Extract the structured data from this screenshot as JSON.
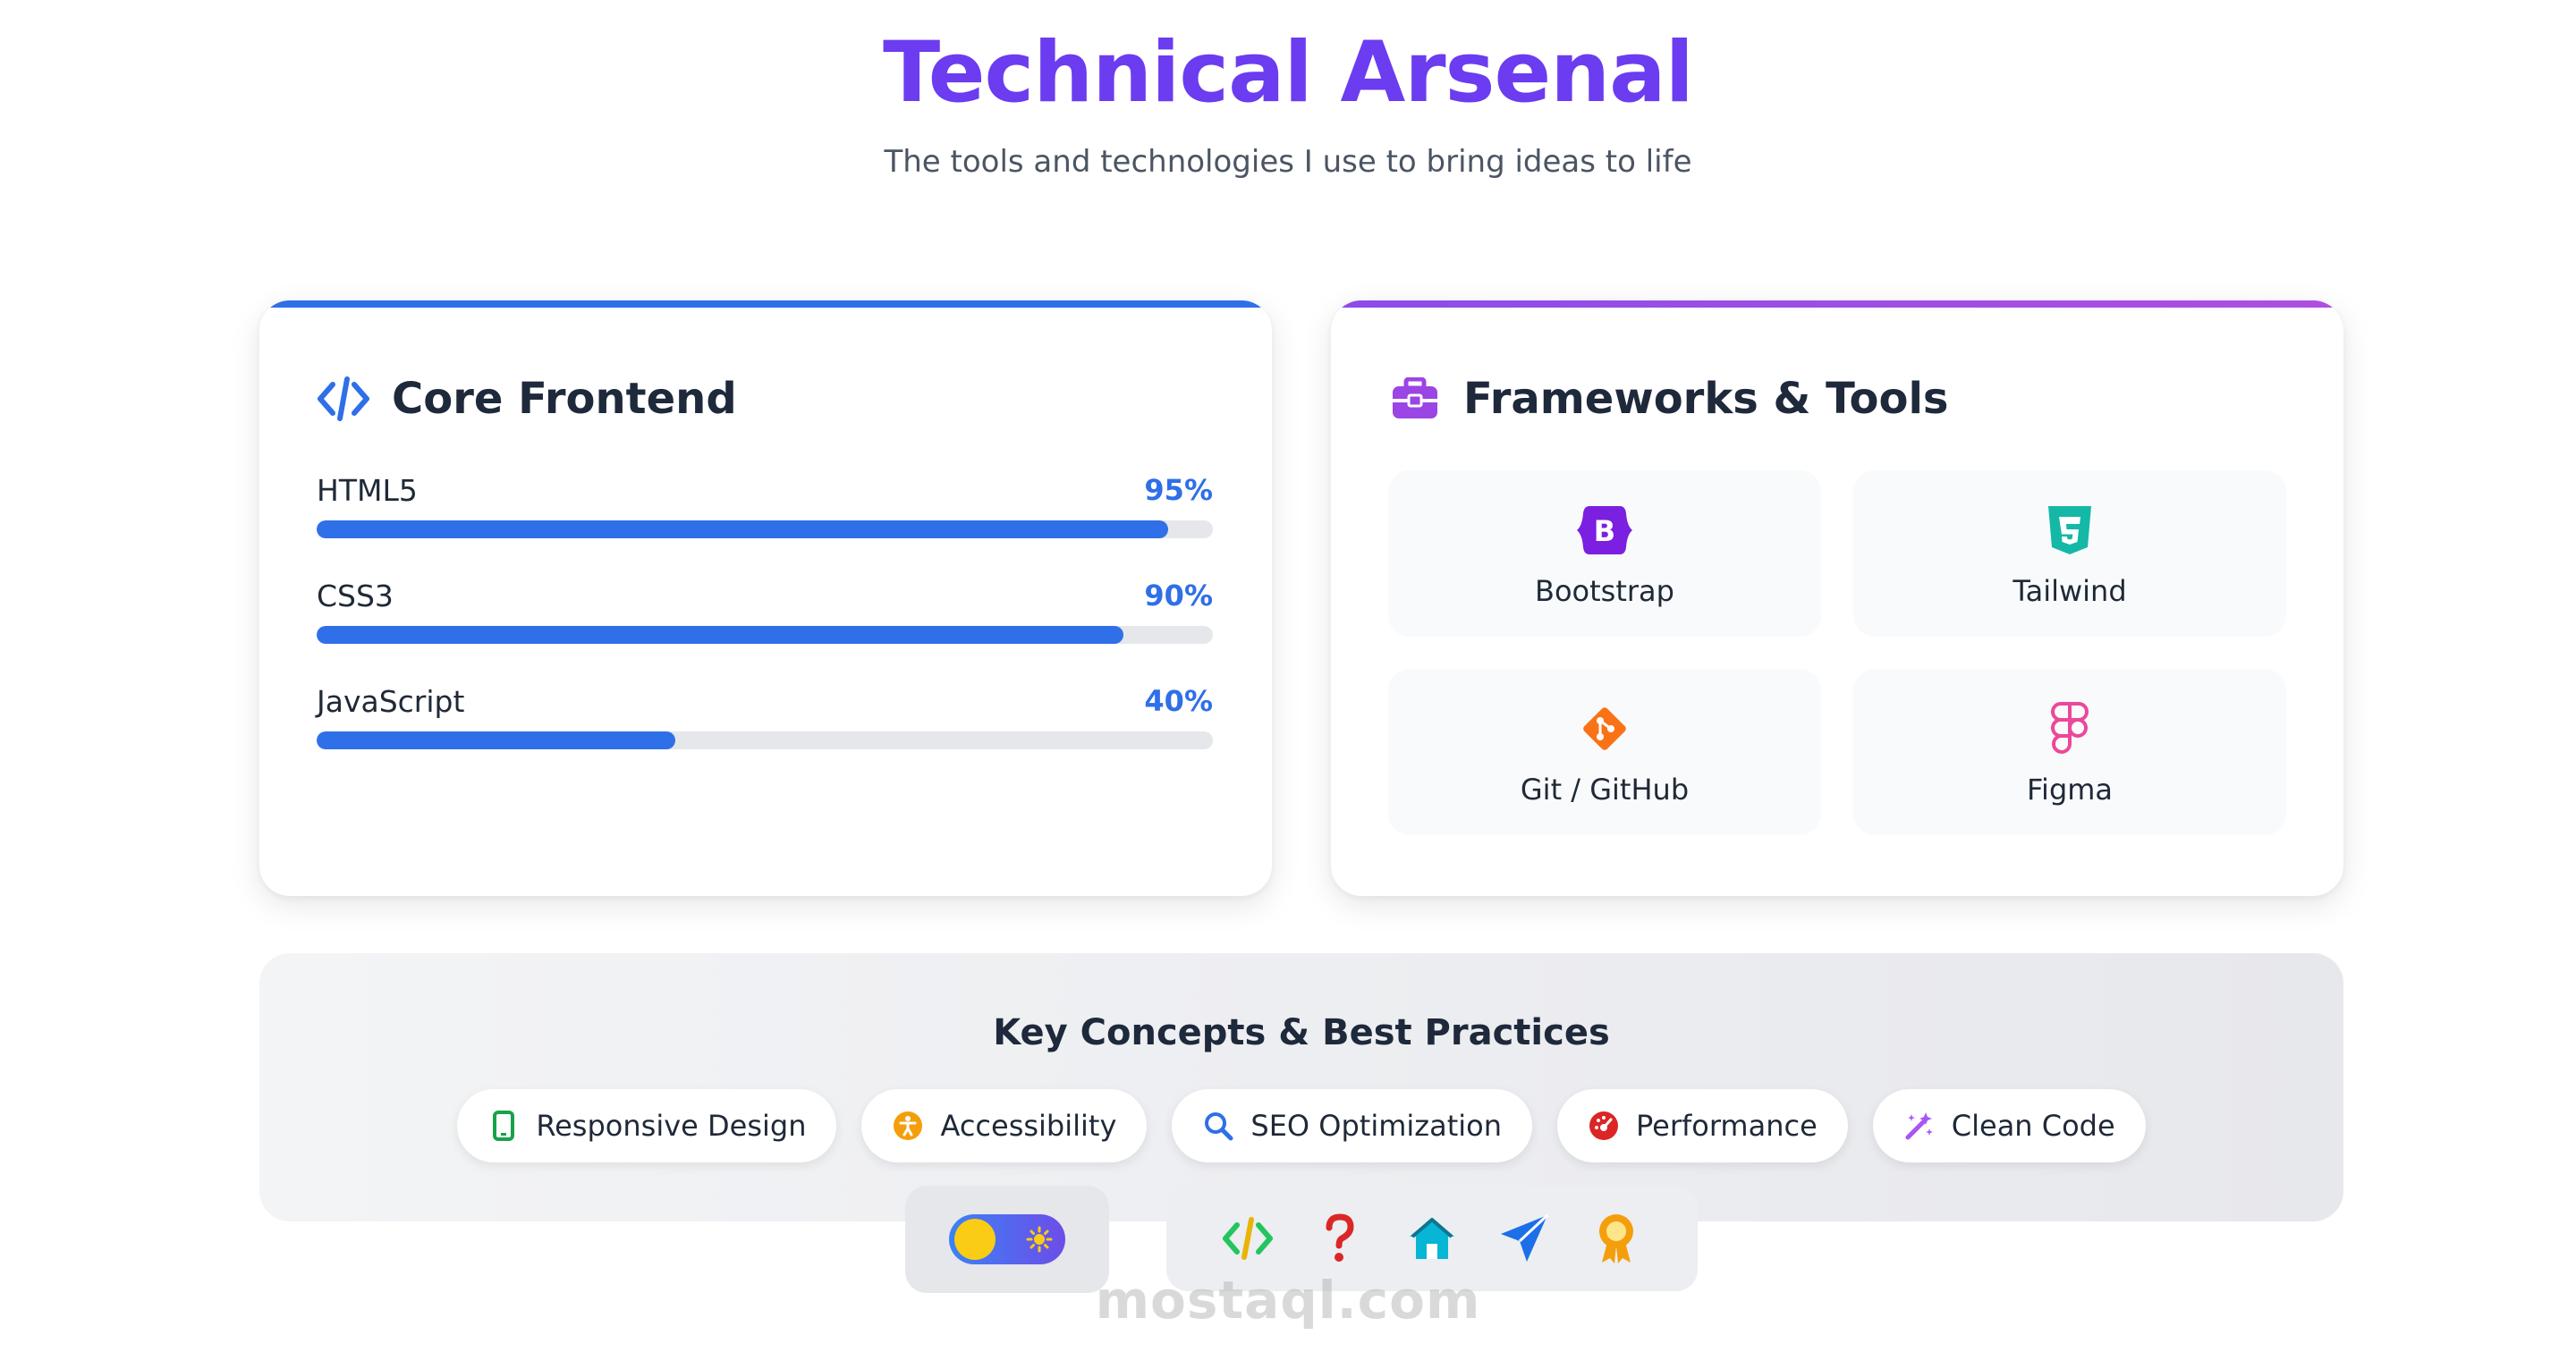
{
  "header": {
    "title": "Technical Arsenal",
    "subtitle": "The tools and technologies I use to bring ideas to life"
  },
  "core_frontend": {
    "title": "Core Frontend",
    "icon": "code-icon",
    "skills": [
      {
        "name": "HTML5",
        "percent_label": "95%",
        "level": 0.95
      },
      {
        "name": "CSS3",
        "percent_label": "90%",
        "level": 0.9
      },
      {
        "name": "JavaScript",
        "percent_label": "40%",
        "level": 0.4
      }
    ]
  },
  "frameworks": {
    "title": "Frameworks & Tools",
    "icon": "toolbox-icon",
    "items": [
      {
        "label": "Bootstrap",
        "icon": "bootstrap-icon"
      },
      {
        "label": "Tailwind",
        "icon": "css3-icon"
      },
      {
        "label": "Git / GitHub",
        "icon": "git-icon"
      },
      {
        "label": "Figma",
        "icon": "figma-icon"
      }
    ]
  },
  "concepts": {
    "title": "Key Concepts & Best Practices",
    "items": [
      {
        "label": "Responsive Design",
        "icon": "mobile-icon"
      },
      {
        "label": "Accessibility",
        "icon": "accessibility-icon"
      },
      {
        "label": "SEO Optimization",
        "icon": "search-icon"
      },
      {
        "label": "Performance",
        "icon": "gauge-icon"
      },
      {
        "label": "Clean Code",
        "icon": "magic-wand-icon"
      }
    ]
  },
  "dock": {
    "icons": [
      "code-icon",
      "question-icon",
      "home-icon",
      "send-icon",
      "award-icon"
    ]
  },
  "watermark": "mostaql.com",
  "colors": {
    "accent_purple": "#6b3cf0",
    "accent_blue": "#2f6fe8"
  }
}
